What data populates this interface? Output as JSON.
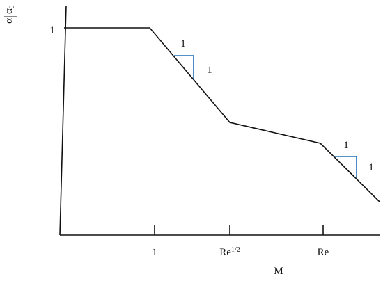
{
  "y_axis": {
    "label": {
      "numerator": "α",
      "denominator": "α",
      "denominator_subscript": "0"
    },
    "tick_label": "1"
  },
  "x_axis": {
    "label": "M",
    "tick_labels": [
      {
        "text": "1"
      },
      {
        "base": "Re",
        "sup": "1/2"
      },
      {
        "text": "Re"
      }
    ]
  },
  "slope_triangles": [
    {
      "run_label": "1",
      "rise_label": "1"
    },
    {
      "run_label": "1",
      "rise_label": "1"
    }
  ]
}
